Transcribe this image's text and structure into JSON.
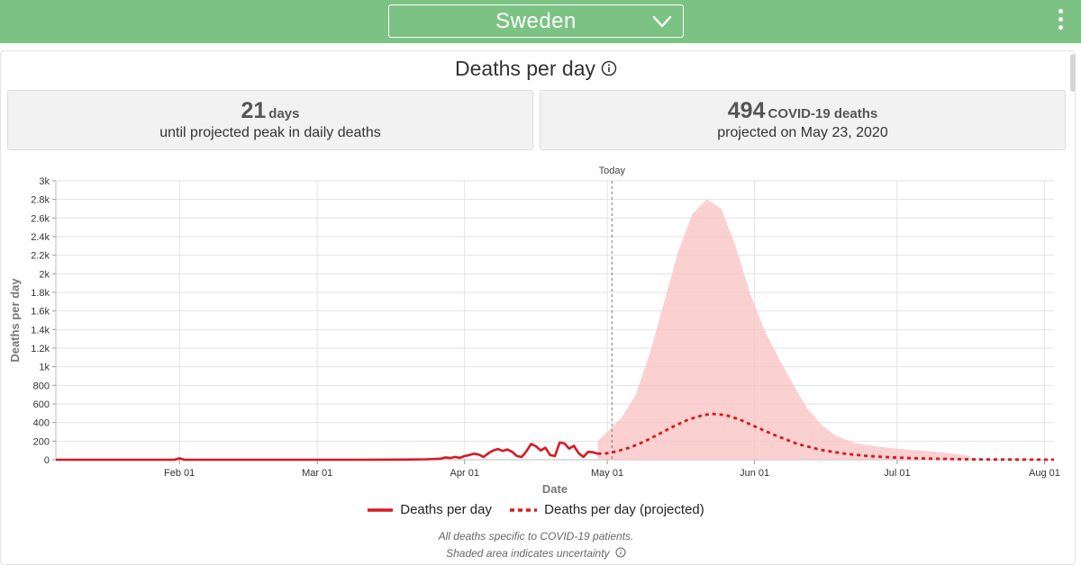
{
  "header": {
    "country": "Sweden",
    "accent_color": "#7cc383"
  },
  "panel": {
    "title": "Deaths per day"
  },
  "cards": [
    {
      "number": "21",
      "unit": "days",
      "subtitle": "until projected peak in daily deaths"
    },
    {
      "number": "494",
      "unit": "COVID-19 deaths",
      "subtitle": "projected on May 23, 2020"
    }
  ],
  "chart_data": {
    "type": "line",
    "xlabel": "Date",
    "ylabel": "Deaths per day",
    "x_axis_type": "date",
    "xlim": [
      "2020-01-06",
      "2020-08-03"
    ],
    "ylim": [
      0,
      3000
    ],
    "x_ticks": [
      "2020-02-01",
      "2020-03-01",
      "2020-04-01",
      "2020-05-01",
      "2020-06-01",
      "2020-07-01",
      "2020-08-01"
    ],
    "x_tick_labels": [
      "Feb 01",
      "Mar 01",
      "Apr 01",
      "May 01",
      "Jun 01",
      "Jul 01",
      "Aug 01"
    ],
    "y_ticks": [
      0,
      200,
      400,
      600,
      800,
      1000,
      1200,
      1400,
      1600,
      1800,
      2000,
      2200,
      2400,
      2600,
      2800,
      3000
    ],
    "y_tick_labels": [
      "0",
      "200",
      "400",
      "600",
      "800",
      "1k",
      "1.2k",
      "1.4k",
      "1.6k",
      "1.8k",
      "2k",
      "2.2k",
      "2.4k",
      "2.6k",
      "2.8k",
      "3k"
    ],
    "grid": true,
    "annotation": {
      "label": "Today",
      "x": "2020-05-02"
    },
    "colors": {
      "line": "#d71920",
      "band": "#f9c4c4"
    },
    "series": [
      {
        "name": "Deaths per day",
        "style": "solid",
        "points": [
          [
            "2020-01-06",
            0
          ],
          [
            "2020-01-31",
            0
          ],
          [
            "2020-02-01",
            15
          ],
          [
            "2020-02-02",
            0
          ],
          [
            "2020-03-10",
            0
          ],
          [
            "2020-03-20",
            2
          ],
          [
            "2020-03-24",
            5
          ],
          [
            "2020-03-27",
            12
          ],
          [
            "2020-03-28",
            25
          ],
          [
            "2020-03-29",
            18
          ],
          [
            "2020-03-30",
            30
          ],
          [
            "2020-03-31",
            20
          ],
          [
            "2020-04-01",
            40
          ],
          [
            "2020-04-02",
            50
          ],
          [
            "2020-04-03",
            65
          ],
          [
            "2020-04-04",
            55
          ],
          [
            "2020-04-05",
            30
          ],
          [
            "2020-04-06",
            70
          ],
          [
            "2020-04-07",
            100
          ],
          [
            "2020-04-08",
            115
          ],
          [
            "2020-04-09",
            95
          ],
          [
            "2020-04-10",
            110
          ],
          [
            "2020-04-11",
            85
          ],
          [
            "2020-04-12",
            40
          ],
          [
            "2020-04-13",
            30
          ],
          [
            "2020-04-14",
            90
          ],
          [
            "2020-04-15",
            170
          ],
          [
            "2020-04-16",
            145
          ],
          [
            "2020-04-17",
            100
          ],
          [
            "2020-04-18",
            130
          ],
          [
            "2020-04-19",
            50
          ],
          [
            "2020-04-20",
            40
          ],
          [
            "2020-04-21",
            185
          ],
          [
            "2020-04-22",
            175
          ],
          [
            "2020-04-23",
            120
          ],
          [
            "2020-04-24",
            150
          ],
          [
            "2020-04-25",
            70
          ],
          [
            "2020-04-26",
            30
          ],
          [
            "2020-04-27",
            85
          ],
          [
            "2020-04-28",
            80
          ],
          [
            "2020-04-29",
            65
          ]
        ]
      },
      {
        "name": "Deaths per day (projected)",
        "style": "dashed",
        "points": [
          [
            "2020-04-29",
            65
          ],
          [
            "2020-05-01",
            70
          ],
          [
            "2020-05-03",
            90
          ],
          [
            "2020-05-06",
            135
          ],
          [
            "2020-05-09",
            200
          ],
          [
            "2020-05-12",
            280
          ],
          [
            "2020-05-15",
            360
          ],
          [
            "2020-05-18",
            430
          ],
          [
            "2020-05-21",
            478
          ],
          [
            "2020-05-23",
            494
          ],
          [
            "2020-05-26",
            480
          ],
          [
            "2020-05-29",
            430
          ],
          [
            "2020-06-01",
            360
          ],
          [
            "2020-06-05",
            270
          ],
          [
            "2020-06-10",
            170
          ],
          [
            "2020-06-15",
            105
          ],
          [
            "2020-06-20",
            65
          ],
          [
            "2020-06-25",
            40
          ],
          [
            "2020-06-30",
            25
          ],
          [
            "2020-07-05",
            15
          ],
          [
            "2020-07-10",
            10
          ],
          [
            "2020-07-15",
            5
          ],
          [
            "2020-07-25",
            2
          ],
          [
            "2020-08-03",
            1
          ]
        ]
      }
    ],
    "uncertainty_band": {
      "upper": [
        [
          "2020-04-29",
          0
        ],
        [
          "2020-04-29",
          200
        ],
        [
          "2020-05-01",
          300
        ],
        [
          "2020-05-04",
          450
        ],
        [
          "2020-05-07",
          700
        ],
        [
          "2020-05-10",
          1150
        ],
        [
          "2020-05-13",
          1700
        ],
        [
          "2020-05-16",
          2250
        ],
        [
          "2020-05-19",
          2650
        ],
        [
          "2020-05-22",
          2800
        ],
        [
          "2020-05-25",
          2700
        ],
        [
          "2020-05-28",
          2300
        ],
        [
          "2020-05-31",
          1800
        ],
        [
          "2020-06-03",
          1400
        ],
        [
          "2020-06-06",
          1100
        ],
        [
          "2020-06-09",
          820
        ],
        [
          "2020-06-12",
          560
        ],
        [
          "2020-06-15",
          380
        ],
        [
          "2020-06-18",
          260
        ],
        [
          "2020-06-22",
          180
        ],
        [
          "2020-06-27",
          140
        ],
        [
          "2020-07-02",
          115
        ],
        [
          "2020-07-07",
          95
        ],
        [
          "2020-07-12",
          70
        ],
        [
          "2020-07-16",
          45
        ],
        [
          "2020-07-17",
          0
        ]
      ]
    }
  },
  "legend": {
    "actual_label": "Deaths per day",
    "projected_label": "Deaths per day (projected)"
  },
  "footnotes": {
    "line1": "All deaths specific to COVID-19 patients.",
    "line2": "Shaded area indicates uncertainty"
  }
}
